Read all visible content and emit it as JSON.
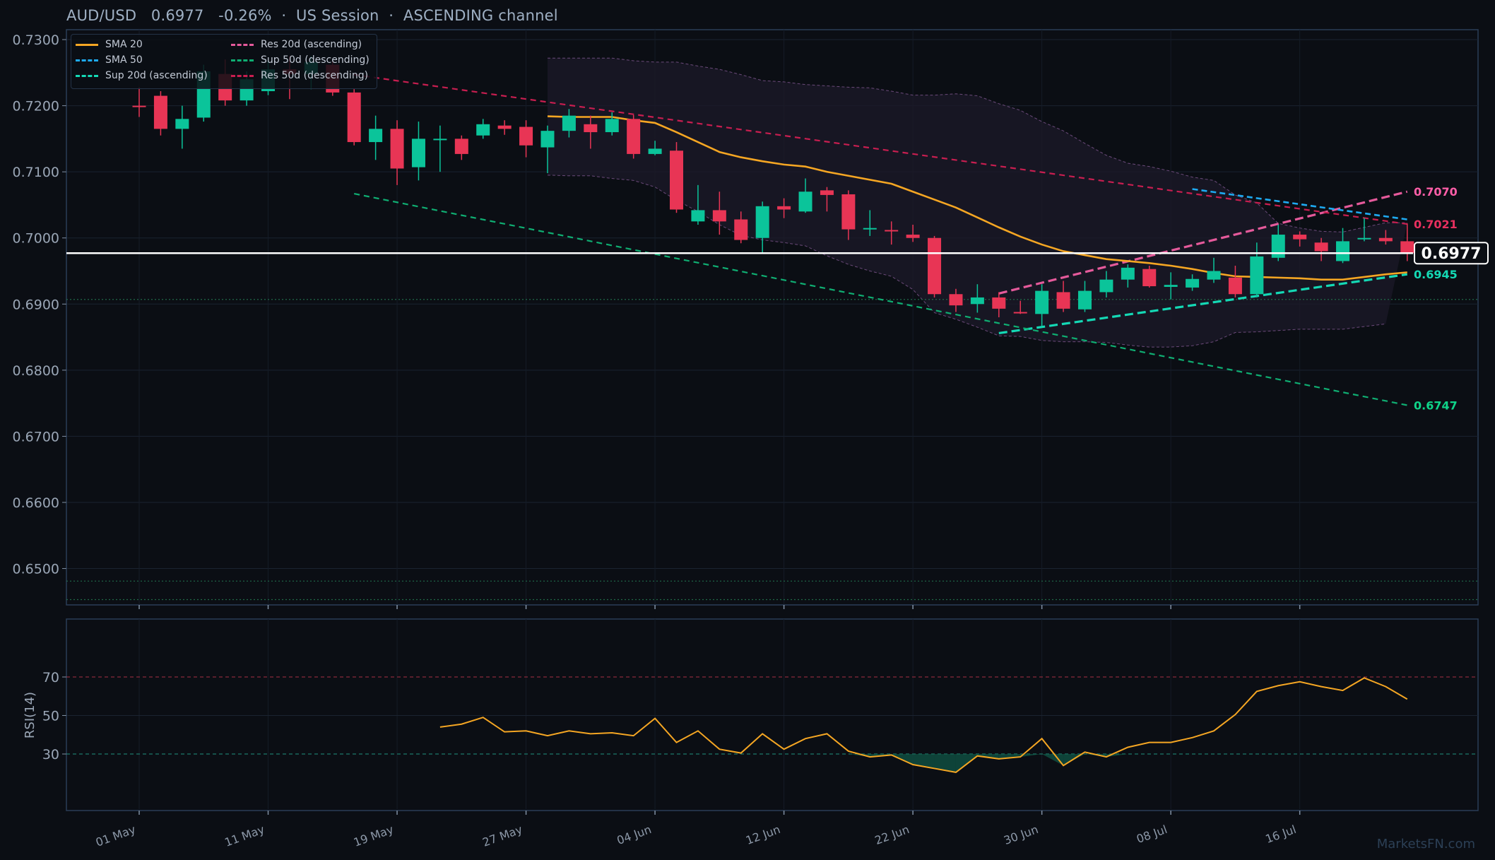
{
  "header": {
    "title": "AUD/USD   0.6977   -0.26%  ·  US Session  ·  ASCENDING channel",
    "watermark": "MarketsFN.com"
  },
  "legend": {
    "items": [
      {
        "label": "SMA 20",
        "color": "#f5a623",
        "style": "solid"
      },
      {
        "label": "SMA 50",
        "color": "#1eaaf1",
        "style": "dashed"
      },
      {
        "label": "Sup 20d (ascending)",
        "color": "#14d9b5",
        "style": "dashed"
      },
      {
        "label": "Res 20d (ascending)",
        "color": "#e55a9b",
        "style": "dashed"
      },
      {
        "label": "Sup 50d (descending)",
        "color": "#0fae72",
        "style": "dashed"
      },
      {
        "label": "Res 50d (descending)",
        "color": "#c81e50",
        "style": "dashed"
      }
    ]
  },
  "chart_data": [
    {
      "type": "candlestick",
      "title": "AUD/USD   0.6977   -0.26%  ·  US Session  ·  ASCENDING channel",
      "ylim": [
        0.6445,
        0.7315
      ],
      "y_ticks": [
        "0.7300",
        "0.7200",
        "0.7100",
        "0.7000",
        "0.6900",
        "0.6800",
        "0.6700",
        "0.6600",
        "0.6500"
      ],
      "x_ticks": [
        "01 May",
        "11 May",
        "19 May",
        "27 May",
        "04 Jun",
        "12 Jun",
        "22 Jun",
        "30 Jun",
        "08 Jul",
        "16 Jul"
      ],
      "grid": true,
      "legend_position": "top-left",
      "last_price": "0.6977",
      "candles": [
        {
          "o": 0.72,
          "h": 0.7228,
          "l": 0.7183,
          "c": 0.7198
        },
        {
          "o": 0.7215,
          "h": 0.7222,
          "l": 0.7155,
          "c": 0.7165
        },
        {
          "o": 0.7165,
          "h": 0.72,
          "l": 0.7135,
          "c": 0.718
        },
        {
          "o": 0.7182,
          "h": 0.7262,
          "l": 0.7176,
          "c": 0.7252
        },
        {
          "o": 0.7248,
          "h": 0.727,
          "l": 0.72,
          "c": 0.7208
        },
        {
          "o": 0.7208,
          "h": 0.7252,
          "l": 0.72,
          "c": 0.724
        },
        {
          "o": 0.7222,
          "h": 0.7268,
          "l": 0.7216,
          "c": 0.7255
        },
        {
          "o": 0.7255,
          "h": 0.7275,
          "l": 0.721,
          "c": 0.7248
        },
        {
          "o": 0.7248,
          "h": 0.7275,
          "l": 0.7225,
          "c": 0.7266
        },
        {
          "o": 0.7262,
          "h": 0.7268,
          "l": 0.7215,
          "c": 0.722
        },
        {
          "o": 0.722,
          "h": 0.7225,
          "l": 0.714,
          "c": 0.7145
        },
        {
          "o": 0.7145,
          "h": 0.7185,
          "l": 0.7118,
          "c": 0.7165
        },
        {
          "o": 0.7165,
          "h": 0.7178,
          "l": 0.708,
          "c": 0.7105
        },
        {
          "o": 0.7107,
          "h": 0.7176,
          "l": 0.7087,
          "c": 0.715
        },
        {
          "o": 0.715,
          "h": 0.717,
          "l": 0.71,
          "c": 0.715
        },
        {
          "o": 0.715,
          "h": 0.7155,
          "l": 0.7118,
          "c": 0.7127
        },
        {
          "o": 0.7155,
          "h": 0.718,
          "l": 0.715,
          "c": 0.7172
        },
        {
          "o": 0.717,
          "h": 0.7178,
          "l": 0.7156,
          "c": 0.7165
        },
        {
          "o": 0.7168,
          "h": 0.7178,
          "l": 0.7122,
          "c": 0.714
        },
        {
          "o": 0.7137,
          "h": 0.717,
          "l": 0.7098,
          "c": 0.7162
        },
        {
          "o": 0.7162,
          "h": 0.7195,
          "l": 0.7152,
          "c": 0.7185
        },
        {
          "o": 0.7172,
          "h": 0.7185,
          "l": 0.7135,
          "c": 0.716
        },
        {
          "o": 0.716,
          "h": 0.719,
          "l": 0.7155,
          "c": 0.718
        },
        {
          "o": 0.718,
          "h": 0.7186,
          "l": 0.712,
          "c": 0.7127
        },
        {
          "o": 0.7127,
          "h": 0.7147,
          "l": 0.7125,
          "c": 0.7135
        },
        {
          "o": 0.7132,
          "h": 0.7145,
          "l": 0.7038,
          "c": 0.7043
        },
        {
          "o": 0.7025,
          "h": 0.708,
          "l": 0.702,
          "c": 0.7042
        },
        {
          "o": 0.7042,
          "h": 0.707,
          "l": 0.7005,
          "c": 0.7025
        },
        {
          "o": 0.7028,
          "h": 0.704,
          "l": 0.6992,
          "c": 0.6997
        },
        {
          "o": 0.7,
          "h": 0.7055,
          "l": 0.6978,
          "c": 0.7048
        },
        {
          "o": 0.7048,
          "h": 0.706,
          "l": 0.703,
          "c": 0.7043
        },
        {
          "o": 0.704,
          "h": 0.709,
          "l": 0.7038,
          "c": 0.707
        },
        {
          "o": 0.7072,
          "h": 0.7077,
          "l": 0.704,
          "c": 0.7065
        },
        {
          "o": 0.7066,
          "h": 0.7072,
          "l": 0.6997,
          "c": 0.7013
        },
        {
          "o": 0.7013,
          "h": 0.7042,
          "l": 0.7003,
          "c": 0.7015
        },
        {
          "o": 0.7012,
          "h": 0.7025,
          "l": 0.699,
          "c": 0.701
        },
        {
          "o": 0.7005,
          "h": 0.702,
          "l": 0.6994,
          "c": 0.7
        },
        {
          "o": 0.7,
          "h": 0.7003,
          "l": 0.691,
          "c": 0.6915
        },
        {
          "o": 0.6915,
          "h": 0.6923,
          "l": 0.6888,
          "c": 0.6898
        },
        {
          "o": 0.69,
          "h": 0.693,
          "l": 0.6887,
          "c": 0.691
        },
        {
          "o": 0.691,
          "h": 0.6918,
          "l": 0.688,
          "c": 0.6893
        },
        {
          "o": 0.6888,
          "h": 0.6905,
          "l": 0.6885,
          "c": 0.6886
        },
        {
          "o": 0.6885,
          "h": 0.693,
          "l": 0.6867,
          "c": 0.692
        },
        {
          "o": 0.6918,
          "h": 0.6935,
          "l": 0.6888,
          "c": 0.6893
        },
        {
          "o": 0.6892,
          "h": 0.6935,
          "l": 0.6888,
          "c": 0.692
        },
        {
          "o": 0.6918,
          "h": 0.695,
          "l": 0.691,
          "c": 0.6937
        },
        {
          "o": 0.6937,
          "h": 0.696,
          "l": 0.6925,
          "c": 0.6955
        },
        {
          "o": 0.6953,
          "h": 0.6958,
          "l": 0.6925,
          "c": 0.6927
        },
        {
          "o": 0.6926,
          "h": 0.6948,
          "l": 0.6907,
          "c": 0.6929
        },
        {
          "o": 0.6925,
          "h": 0.6945,
          "l": 0.692,
          "c": 0.6938
        },
        {
          "o": 0.6937,
          "h": 0.697,
          "l": 0.6932,
          "c": 0.695
        },
        {
          "o": 0.694,
          "h": 0.6958,
          "l": 0.691,
          "c": 0.6915
        },
        {
          "o": 0.6915,
          "h": 0.6993,
          "l": 0.691,
          "c": 0.6972
        },
        {
          "o": 0.697,
          "h": 0.702,
          "l": 0.6965,
          "c": 0.7005
        },
        {
          "o": 0.7005,
          "h": 0.701,
          "l": 0.6987,
          "c": 0.6998
        },
        {
          "o": 0.6993,
          "h": 0.7,
          "l": 0.6965,
          "c": 0.698
        },
        {
          "o": 0.6965,
          "h": 0.7015,
          "l": 0.6962,
          "c": 0.6995
        },
        {
          "o": 0.6998,
          "h": 0.703,
          "l": 0.6995,
          "c": 0.7
        },
        {
          "o": 0.7,
          "h": 0.7012,
          "l": 0.699,
          "c": 0.6995
        },
        {
          "o": 0.6995,
          "h": 0.7022,
          "l": 0.6965,
          "c": 0.6977
        }
      ],
      "sma20": [
        null,
        null,
        null,
        null,
        null,
        null,
        null,
        null,
        null,
        null,
        null,
        null,
        null,
        null,
        null,
        null,
        null,
        null,
        null,
        0.7184,
        0.7183,
        0.7183,
        0.7183,
        0.7178,
        0.7174,
        0.716,
        0.7145,
        0.713,
        0.7122,
        0.7116,
        0.7111,
        0.7108,
        0.71,
        0.7094,
        0.7088,
        0.7082,
        0.707,
        0.7058,
        0.7046,
        0.7031,
        0.7016,
        0.7002,
        0.699,
        0.698,
        0.6974,
        0.6968,
        0.6965,
        0.6962,
        0.6958,
        0.6953,
        0.6947,
        0.6942,
        0.6941,
        0.694,
        0.6939,
        0.6937,
        0.6937,
        0.6941,
        0.6945,
        0.6948
      ],
      "sma50": [
        null,
        null,
        null,
        null,
        null,
        null,
        null,
        null,
        null,
        null,
        null,
        null,
        null,
        null,
        null,
        null,
        null,
        null,
        null,
        null,
        null,
        null,
        null,
        null,
        null,
        null,
        null,
        null,
        null,
        null,
        null,
        null,
        null,
        null,
        null,
        null,
        null,
        null,
        null,
        null,
        null,
        null,
        null,
        null,
        null,
        null,
        null,
        null,
        null,
        0.7074,
        0.7069,
        0.7064,
        0.7059,
        0.7054,
        0.7049,
        0.7043,
        0.7038,
        0.7033,
        0.7028
      ],
      "band_upper": [
        null,
        null,
        null,
        null,
        null,
        null,
        null,
        null,
        null,
        null,
        null,
        null,
        null,
        null,
        null,
        null,
        null,
        null,
        null,
        0.7272,
        0.7272,
        0.7272,
        0.7272,
        0.7268,
        0.7266,
        0.7266,
        0.726,
        0.7255,
        0.7247,
        0.7238,
        0.7236,
        0.7232,
        0.723,
        0.7228,
        0.7227,
        0.7222,
        0.7216,
        0.7216,
        0.7218,
        0.7215,
        0.7203,
        0.7193,
        0.7176,
        0.7162,
        0.7143,
        0.7125,
        0.7113,
        0.7108,
        0.7101,
        0.7092,
        0.7087,
        0.7065,
        0.7053,
        0.7022,
        0.7015,
        0.701,
        0.7009,
        0.7016,
        0.7023,
        0.7023
      ],
      "band_lower": [
        null,
        null,
        null,
        null,
        null,
        null,
        null,
        null,
        null,
        null,
        null,
        null,
        null,
        null,
        null,
        null,
        null,
        null,
        null,
        0.7095,
        0.7094,
        0.7094,
        0.709,
        0.7087,
        0.7077,
        0.7057,
        0.704,
        0.702,
        0.7004,
        0.6997,
        0.6993,
        0.6988,
        0.6973,
        0.696,
        0.695,
        0.6942,
        0.6922,
        0.6887,
        0.6877,
        0.6865,
        0.6852,
        0.6851,
        0.6845,
        0.6843,
        0.6843,
        0.6842,
        0.6838,
        0.6835,
        0.6835,
        0.6837,
        0.6843,
        0.6857,
        0.6858,
        0.686,
        0.6862,
        0.6862,
        0.6862,
        0.6866,
        0.687
      ],
      "lines": [
        {
          "name": "Res 20d (ascending)",
          "from": [
            40,
            0.6916
          ],
          "to": [
            59,
            0.707
          ]
        },
        {
          "name": "Sup 20d (ascending)",
          "from": [
            40,
            0.6856
          ],
          "to": [
            59,
            0.6945
          ]
        },
        {
          "name": "Res 50d (descending)",
          "from": [
            10,
            0.7247
          ],
          "to": [
            59,
            0.7021
          ]
        },
        {
          "name": "Sup 50d (descending)",
          "from": [
            10,
            0.7067
          ],
          "to": [
            59,
            0.6747
          ]
        },
        {
          "name": "SMA 50",
          "from": [
            49,
            0.7074
          ],
          "to": [
            59,
            0.7028
          ]
        }
      ],
      "h_levels": [
        0.6907,
        0.6481,
        0.6453
      ],
      "right_labels": [
        {
          "text": "0.7070",
          "value": 0.707,
          "color": "#ff5ea8"
        },
        {
          "text": "0.7021",
          "value": 0.7021,
          "color": "#e8305f"
        },
        {
          "text": "0.6945",
          "value": 0.6945,
          "color": "#14d9b5"
        },
        {
          "text": "0.6747",
          "value": 0.6747,
          "color": "#0fd489"
        }
      ],
      "colors": {
        "up": "#0bc49a",
        "down": "#e83555",
        "sma20": "#f5a623",
        "price_line": "#ffffff"
      }
    },
    {
      "type": "line",
      "ylabel": "RSI(14)",
      "ylim": [
        0,
        100
      ],
      "y_ticks": [
        "70",
        "50",
        "30"
      ],
      "levels": [
        70,
        30
      ],
      "series": [
        {
          "values": [
            null,
            null,
            null,
            null,
            null,
            null,
            null,
            null,
            null,
            null,
            null,
            null,
            null,
            null,
            44,
            45.5,
            49,
            41.5,
            42,
            39.5,
            42,
            40.5,
            41,
            39.5,
            48.5,
            36,
            42,
            32.5,
            30.5,
            40.5,
            32.5,
            38,
            40.5,
            31.5,
            28.5,
            29.5,
            24.5,
            22.5,
            20.5,
            29,
            27.5,
            28.5,
            38,
            24,
            31,
            28.5,
            33.5,
            36,
            36,
            38.5,
            42,
            50.5,
            62.5,
            65.5,
            67.5,
            65,
            63,
            69.5,
            65,
            58.5
          ]
        }
      ],
      "color": "#f5a623"
    }
  ]
}
